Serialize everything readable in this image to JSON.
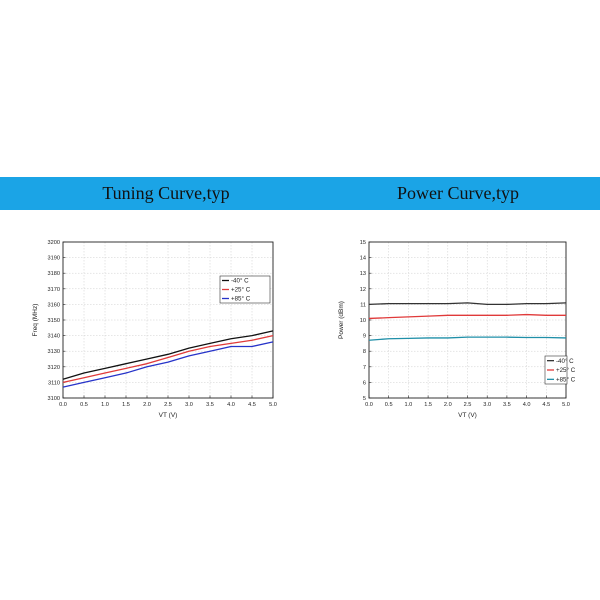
{
  "header": {
    "left_title": "Tuning Curve,typ",
    "right_title": "Power Curve,typ",
    "band_color": "#1ba4e6"
  },
  "chart_data": [
    {
      "type": "line",
      "title": "Tuning Curve,typ",
      "xlabel": "VT (V)",
      "ylabel": "Freq (MHz)",
      "xlim": [
        0,
        5
      ],
      "ylim": [
        3100,
        3200
      ],
      "xticks": [
        "0.0",
        "0.5",
        "1.0",
        "1.5",
        "2.0",
        "2.5",
        "3.0",
        "3.5",
        "4.0",
        "4.5",
        "5.0"
      ],
      "yticks": [
        "3100",
        "3110",
        "3120",
        "3130",
        "3140",
        "3150",
        "3160",
        "3170",
        "3180",
        "3190",
        "3200"
      ],
      "grid": true,
      "legend_position": "right",
      "x": [
        0,
        0.5,
        1.0,
        1.5,
        2.0,
        2.5,
        3.0,
        3.5,
        4.0,
        4.5,
        5.0
      ],
      "series": [
        {
          "name": "-40° C",
          "color": "#111111",
          "values": [
            3112,
            3116,
            3119,
            3122,
            3125,
            3128,
            3132,
            3135,
            3138,
            3140,
            3143
          ]
        },
        {
          "name": "+25° C",
          "color": "#e03a3a",
          "values": [
            3110,
            3113,
            3116,
            3119,
            3122,
            3126,
            3130,
            3133,
            3135,
            3137,
            3140
          ]
        },
        {
          "name": "+85° C",
          "color": "#2633c9",
          "values": [
            3107,
            3110,
            3113,
            3116,
            3120,
            3123,
            3127,
            3130,
            3133,
            3133,
            3136
          ]
        }
      ]
    },
    {
      "type": "line",
      "title": "Power Curve,typ",
      "xlabel": "VT (V)",
      "ylabel": "Power (dBm)",
      "xlim": [
        0,
        5
      ],
      "ylim": [
        5,
        15
      ],
      "xticks": [
        "0.0",
        "0.5",
        "1.0",
        "1.5",
        "2.0",
        "2.5",
        "3.0",
        "3.5",
        "4.0",
        "4.5",
        "5.0"
      ],
      "yticks": [
        "5",
        "6",
        "7",
        "8",
        "9",
        "10",
        "11",
        "12",
        "13",
        "14",
        "15"
      ],
      "grid": true,
      "legend_position": "bottom-right",
      "x": [
        0,
        0.5,
        1.0,
        1.5,
        2.0,
        2.5,
        3.0,
        3.5,
        4.0,
        4.5,
        5.0
      ],
      "series": [
        {
          "name": "-40° C",
          "color": "#333333",
          "values": [
            11.0,
            11.05,
            11.05,
            11.05,
            11.05,
            11.1,
            11.0,
            11.0,
            11.05,
            11.05,
            11.1
          ]
        },
        {
          "name": "+25° C",
          "color": "#e03a3a",
          "values": [
            10.1,
            10.15,
            10.2,
            10.25,
            10.3,
            10.3,
            10.3,
            10.3,
            10.35,
            10.3,
            10.3
          ]
        },
        {
          "name": "+85° C",
          "color": "#1f8fa8",
          "values": [
            8.7,
            8.8,
            8.82,
            8.85,
            8.85,
            8.9,
            8.9,
            8.9,
            8.88,
            8.88,
            8.85
          ]
        }
      ]
    }
  ]
}
